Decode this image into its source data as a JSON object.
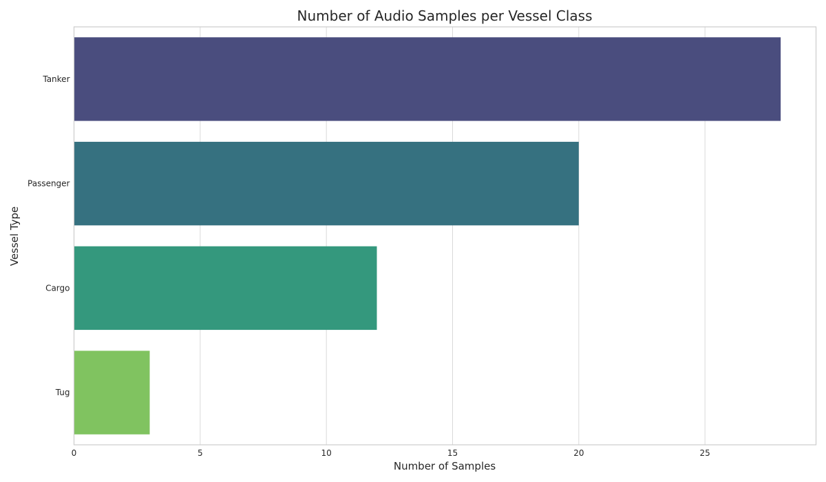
{
  "chart_data": {
    "type": "bar",
    "orientation": "horizontal",
    "title": "Number of Audio Samples per Vessel Class",
    "xlabel": "Number of Samples",
    "ylabel": "Vessel Type",
    "categories": [
      "Tanker",
      "Passenger",
      "Cargo",
      "Tug"
    ],
    "values": [
      28,
      20,
      12,
      3
    ],
    "colors": [
      "#4a4d7e",
      "#367180",
      "#34987d",
      "#80c360"
    ],
    "xlim": [
      0,
      29.4
    ],
    "xticks": [
      0,
      5,
      10,
      15,
      20,
      25
    ],
    "grid": true
  }
}
